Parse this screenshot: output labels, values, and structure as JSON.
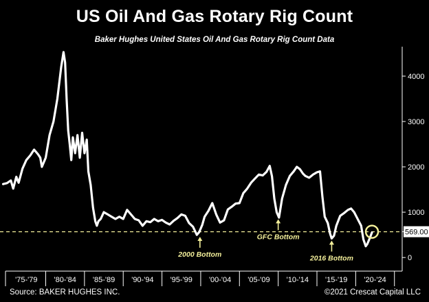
{
  "title": "US Oil And Gas Rotary Rig Count",
  "subtitle": "Baker Hughes United States Oil And Gas Rotary Rig Count Data",
  "source": "Source: BAKER HUGHES INC.",
  "copyright": "©2021 Crescat Capital LLC",
  "chart_data": {
    "type": "line",
    "title": "US Oil And Gas Rotary Rig Count",
    "xlabel": "",
    "ylabel": "",
    "xlim": [
      1973.6,
      2025.5
    ],
    "ylim": [
      -300,
      4650
    ],
    "y_ticks": [
      0,
      1000,
      2000,
      3000,
      4000
    ],
    "y_tick_labels": [
      "0",
      "1000",
      "2000",
      "3000",
      "4000"
    ],
    "x_tick_labels": [
      "'75-'79",
      "'80-'84",
      "'85-'89",
      "'90-'94",
      "'95-'99",
      "'00-'04",
      "'05-'09",
      "'10-'14",
      "'15-'19",
      "'20-'24"
    ],
    "x_tick_centers": [
      1977,
      1982,
      1987,
      1992,
      1997,
      2002,
      2007,
      2012,
      2017,
      2022
    ],
    "x_dividers": [
      1979.5,
      1984.5,
      1989.5,
      1994.5,
      1999.5,
      2004.5,
      2009.5,
      2014.5,
      2019.5,
      2024.5
    ],
    "reference_line": {
      "value": 569,
      "label": "569.00",
      "style": "dashed"
    },
    "highlight_circle": {
      "x": 2021.6,
      "y": 569
    },
    "annotations": [
      {
        "text": "2000 Bottom",
        "x": 1999.4,
        "y": 488
      },
      {
        "text": "GFC Bottom",
        "x": 2009.5,
        "y": 876
      },
      {
        "text": "2016 Bottom",
        "x": 2016.4,
        "y": 404
      }
    ],
    "series": [
      {
        "name": "US Oil And Gas Rotary Rig Count",
        "x": [
          1974.0,
          1974.5,
          1975.0,
          1975.3,
          1975.7,
          1976.0,
          1976.5,
          1977.0,
          1977.5,
          1978.0,
          1978.5,
          1978.8,
          1979.0,
          1979.5,
          1980.0,
          1980.5,
          1981.0,
          1981.5,
          1981.8,
          1982.0,
          1982.2,
          1982.4,
          1982.6,
          1982.8,
          1983.0,
          1983.3,
          1983.6,
          1983.9,
          1984.2,
          1984.5,
          1984.8,
          1985.0,
          1985.3,
          1985.6,
          1985.9,
          1986.1,
          1986.3,
          1986.6,
          1987.0,
          1987.5,
          1988.0,
          1988.5,
          1989.0,
          1989.5,
          1990.0,
          1990.5,
          1991.0,
          1991.5,
          1992.0,
          1992.5,
          1993.0,
          1993.5,
          1994.0,
          1994.5,
          1995.0,
          1995.5,
          1996.0,
          1996.5,
          1997.0,
          1997.5,
          1998.0,
          1998.5,
          1999.0,
          1999.3,
          1999.7,
          2000.0,
          2000.5,
          2001.0,
          2001.5,
          2002.0,
          2002.5,
          2003.0,
          2003.5,
          2004.0,
          2004.5,
          2005.0,
          2005.5,
          2006.0,
          2006.5,
          2007.0,
          2007.5,
          2008.0,
          2008.4,
          2008.7,
          2009.0,
          2009.3,
          2009.6,
          2010.0,
          2010.5,
          2011.0,
          2011.5,
          2011.9,
          2012.3,
          2012.7,
          2013.0,
          2013.5,
          2014.0,
          2014.5,
          2014.9,
          2015.2,
          2015.5,
          2015.9,
          2016.2,
          2016.4,
          2016.7,
          2017.0,
          2017.5,
          2018.0,
          2018.5,
          2018.9,
          2019.3,
          2019.6,
          2019.9,
          2020.2,
          2020.5,
          2020.8,
          2021.0,
          2021.3,
          2021.6
        ],
        "y": [
          1620,
          1640,
          1700,
          1520,
          1780,
          1650,
          1960,
          2150,
          2250,
          2380,
          2280,
          2200,
          2000,
          2200,
          2700,
          3000,
          3500,
          4200,
          4530,
          4300,
          3500,
          2800,
          2500,
          2150,
          2650,
          2300,
          2700,
          2200,
          2750,
          2300,
          2600,
          1900,
          1600,
          1100,
          800,
          700,
          800,
          850,
          1000,
          950,
          900,
          850,
          900,
          850,
          1050,
          950,
          850,
          820,
          700,
          800,
          780,
          850,
          800,
          830,
          770,
          730,
          810,
          870,
          950,
          920,
          760,
          680,
          500,
          560,
          720,
          900,
          1030,
          1200,
          950,
          770,
          820,
          1060,
          1120,
          1190,
          1200,
          1420,
          1520,
          1650,
          1740,
          1830,
          1810,
          1890,
          2020,
          1790,
          1300,
          1000,
          880,
          1300,
          1600,
          1800,
          1900,
          2000,
          1950,
          1850,
          1800,
          1760,
          1830,
          1880,
          1900,
          1350,
          900,
          760,
          520,
          420,
          480,
          700,
          920,
          980,
          1050,
          1080,
          1000,
          900,
          800,
          700,
          400,
          250,
          300,
          420,
          550
        ]
      }
    ]
  }
}
